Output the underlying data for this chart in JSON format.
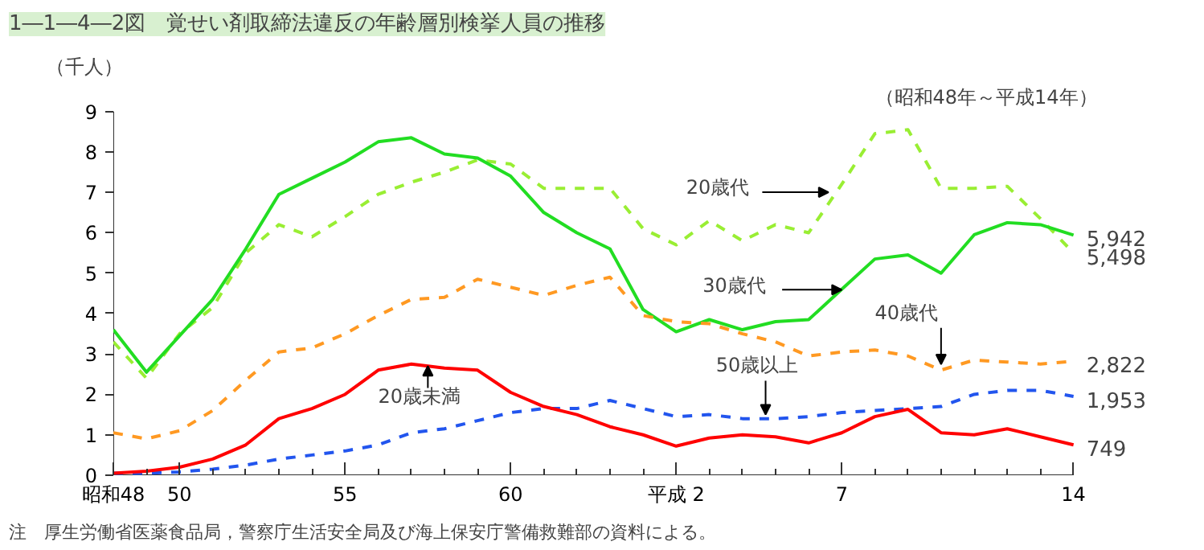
{
  "chart_data": {
    "type": "line",
    "title": "1―1―4―2図　覚せい剤取締法違反の年齢層別検挙人員の推移",
    "subtitle": "（昭和48年～平成14年）",
    "ylabel": "（千人）",
    "annotations": [
      "注　厚生労働省医薬食品局，警察庁生活安全局及び海上保安庁警備救難部の資料による。",
      "5,498",
      "5,942",
      "2,822",
      "1,953",
      "749"
    ],
    "categories": [
      "昭和48",
      null,
      "50",
      null,
      null,
      null,
      null,
      "55",
      null,
      null,
      null,
      null,
      "60",
      null,
      null,
      null,
      null,
      "平成 2",
      null,
      null,
      null,
      null,
      "7",
      null,
      null,
      null,
      null,
      null,
      null,
      "14"
    ],
    "series": [
      {
        "name": "20歳代",
        "color": "#99ee33",
        "line_style": "dashed",
        "values": [
          3.3,
          2.4,
          3.5,
          4.15,
          5.5,
          6.2,
          5.9,
          6.4,
          6.95,
          7.25,
          7.5,
          7.8,
          7.7,
          7.1,
          7.1,
          7.1,
          6.1,
          5.7,
          6.3,
          5.8,
          6.2,
          6.0,
          7.2,
          8.45,
          8.55,
          7.1,
          7.1,
          7.15,
          6.35,
          5.5
        ]
      },
      {
        "name": "30歳代",
        "color": "#22dd22",
        "line_style": "solid",
        "values": [
          3.6,
          2.55,
          3.45,
          4.35,
          5.6,
          6.95,
          7.35,
          7.75,
          8.25,
          8.35,
          7.95,
          7.85,
          7.4,
          6.5,
          6.0,
          5.6,
          4.1,
          3.55,
          3.85,
          3.6,
          3.8,
          3.85,
          4.6,
          5.35,
          5.45,
          5.0,
          5.95,
          6.25,
          6.2,
          5.94
        ]
      },
      {
        "name": "40歳代",
        "color": "#ff9922",
        "line_style": "dashed",
        "values": [
          1.05,
          0.9,
          1.1,
          1.6,
          2.35,
          3.05,
          3.15,
          3.5,
          3.95,
          4.35,
          4.4,
          4.85,
          4.65,
          4.45,
          4.7,
          4.9,
          3.95,
          3.8,
          3.75,
          3.5,
          3.3,
          2.95,
          3.05,
          3.1,
          2.95,
          2.6,
          2.85,
          2.8,
          2.75,
          2.82
        ]
      },
      {
        "name": "50歳以上",
        "color": "#2255ee",
        "line_style": "dashed",
        "values": [
          0.05,
          0.05,
          0.08,
          0.15,
          0.25,
          0.4,
          0.5,
          0.6,
          0.75,
          1.05,
          1.15,
          1.35,
          1.55,
          1.65,
          1.65,
          1.85,
          1.65,
          1.45,
          1.5,
          1.4,
          1.4,
          1.45,
          1.55,
          1.6,
          1.65,
          1.7,
          2.0,
          2.1,
          2.1,
          1.95
        ]
      },
      {
        "name": "20歳未満",
        "color": "#ff0000",
        "line_style": "solid",
        "values": [
          0.05,
          0.1,
          0.2,
          0.4,
          0.75,
          1.4,
          1.65,
          2.0,
          2.6,
          2.75,
          2.65,
          2.6,
          2.05,
          1.7,
          1.5,
          1.2,
          1.0,
          0.72,
          0.92,
          1.0,
          0.95,
          0.8,
          1.05,
          1.45,
          1.63,
          1.05,
          1.0,
          1.15,
          0.95,
          0.75
        ]
      }
    ],
    "ylim": [
      0,
      9
    ],
    "yticks": [
      0,
      1,
      2,
      3,
      4,
      5,
      6,
      7,
      8,
      9
    ],
    "grid": false,
    "marker": "none"
  }
}
